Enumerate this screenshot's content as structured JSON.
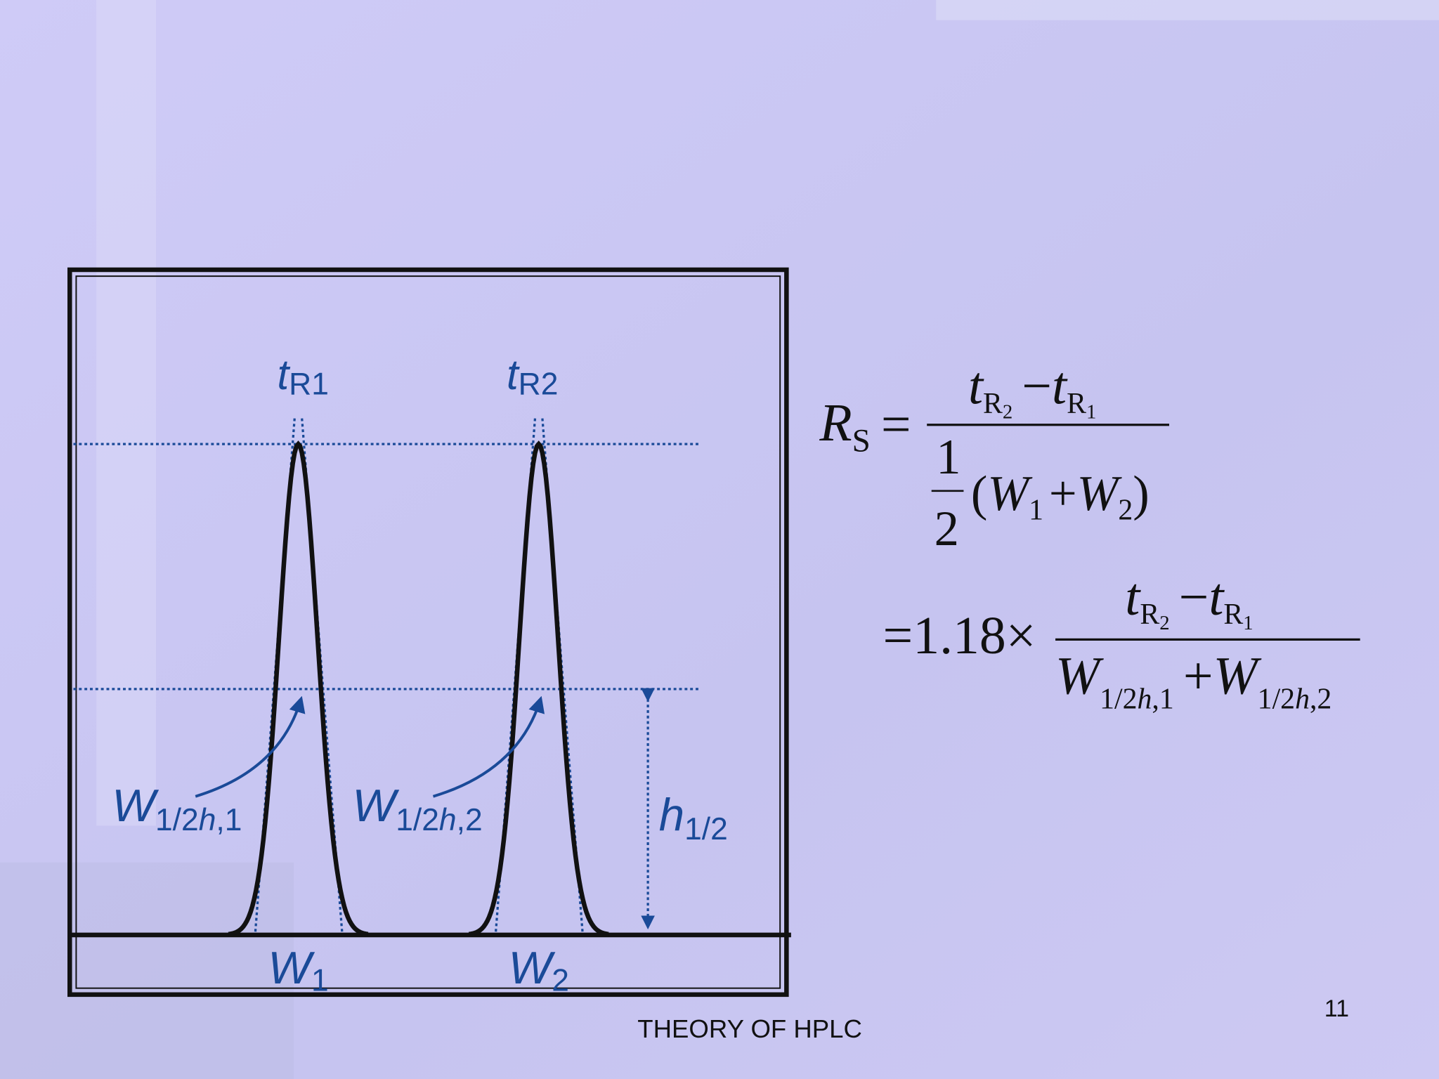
{
  "diagram": {
    "t_r1": {
      "symbol": "t",
      "subscript": "R1"
    },
    "t_r2": {
      "symbol": "t",
      "subscript": "R2"
    },
    "w_half_1": {
      "symbol": "W",
      "sub_a": "1/2",
      "sub_h": "h",
      "sub_b": ",1"
    },
    "w_half_2": {
      "symbol": "W",
      "sub_a": "1/2",
      "sub_h": "h",
      "sub_b": ",2"
    },
    "h_half": {
      "symbol": "h",
      "subscript": "1/2"
    },
    "w_1": {
      "symbol": "W",
      "subscript": "1"
    },
    "w_2": {
      "symbol": "W",
      "subscript": "2"
    }
  },
  "equation_1": {
    "lhs": "R",
    "lhs_sub": "S",
    "equals": "=",
    "numerator": {
      "t1": "t",
      "sub1": "R",
      "subsub1": "2",
      "minus": "−",
      "t2": "t",
      "sub2": "R",
      "subsub2": "1"
    },
    "denominator": {
      "half_num": "1",
      "half_den": "2",
      "open": "(",
      "w1": "W",
      "w1_sub": "1",
      "plus": "+",
      "w2": "W",
      "w2_sub": "2",
      "close": ")"
    }
  },
  "equation_2": {
    "equals": "=",
    "factor": "1.18",
    "times": "×",
    "numerator": {
      "t1": "t",
      "sub1": "R",
      "subsub1": "2",
      "minus": "−",
      "t2": "t",
      "sub2": "R",
      "subsub2": "1"
    },
    "denominator": {
      "w1": "W",
      "w1_sub_a": "1/2",
      "w1_sub_h": "h",
      "w1_sub_b": ",1",
      "plus": "+",
      "w2": "W",
      "w2_sub_a": "1/2",
      "w2_sub_h": "h",
      "w2_sub_b": ",2"
    }
  },
  "footer": "THEORY OF HPLC",
  "slide_number": "11"
}
